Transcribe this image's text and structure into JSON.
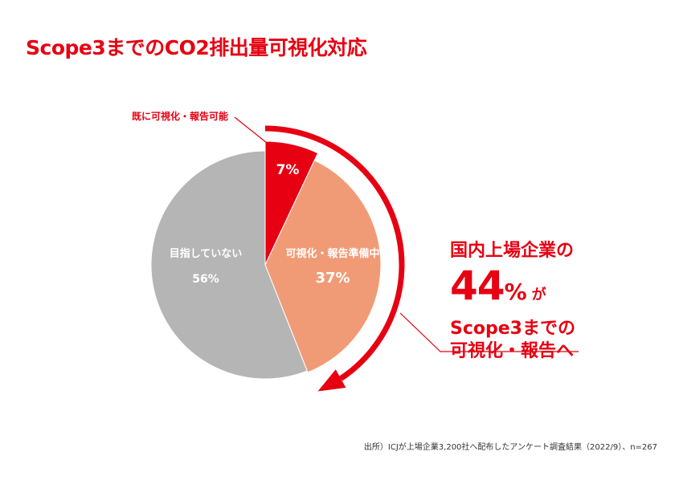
{
  "title": "Scope3までのCO2排出量可視化対応",
  "chart_data": {
    "type": "pie",
    "categories": [
      "既に可視化・報告可能",
      "可視化・報告準備中",
      "目指していない"
    ],
    "values": [
      7,
      37,
      56
    ],
    "value_labels": [
      "7%",
      "37%",
      "56%"
    ],
    "slice_labels": [
      "",
      "可視化・報告準備中",
      "目指していない"
    ],
    "external_label": "既に可視化・報告可能",
    "colors": [
      "#e60012",
      "#f19b76",
      "#b5b5b5"
    ]
  },
  "callout": {
    "line1": "国内上場企業の",
    "big_number": "44",
    "percent_sign": "%",
    "particle": "が",
    "line3": "Scope3までの",
    "line4": "可視化・報告へ"
  },
  "source": "出所）ICJが上場企業3,200社へ配布したアンケート調査結果（2022/9）、n=267",
  "colors": {
    "accent": "#e60012",
    "text_dark": "#333333"
  }
}
